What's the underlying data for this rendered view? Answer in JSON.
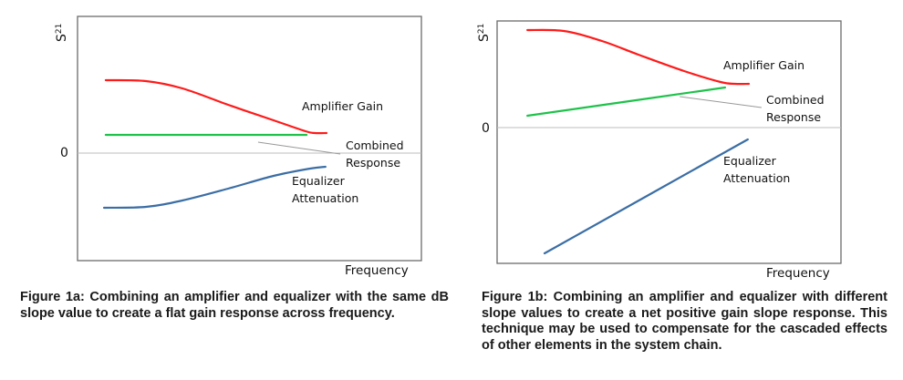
{
  "chart_data": [
    {
      "type": "line",
      "title": "",
      "xlabel": "Frequency",
      "ylabel": "S21",
      "ylabel_main": "S",
      "ylabel_sub": "21",
      "y_tick_labels": [
        "0"
      ],
      "xlim": [
        0,
        10
      ],
      "ylim": [
        -4.72,
        6
      ],
      "series": [
        {
          "name": "Amplifier Gain",
          "color": "#ff1a1a",
          "points": [
            [
              0.82,
              3.2
            ],
            [
              1.99,
              3.16
            ],
            [
              3.05,
              2.84
            ],
            [
              4.38,
              2.12
            ],
            [
              5.7,
              1.44
            ],
            [
              6.63,
              0.96
            ],
            [
              6.9,
              0.88
            ],
            [
              7.24,
              0.88
            ]
          ]
        },
        {
          "name": "Combined Response",
          "color": "#1ec24a",
          "points": [
            [
              0.82,
              0.8
            ],
            [
              6.66,
              0.8
            ]
          ]
        },
        {
          "name": "Equalizer Attenuation",
          "color": "#3b6ea5",
          "points": [
            [
              0.77,
              -2.4
            ],
            [
              1.99,
              -2.36
            ],
            [
              3.05,
              -2.08
            ],
            [
              4.38,
              -1.56
            ],
            [
              5.7,
              -1.0
            ],
            [
              6.76,
              -0.68
            ],
            [
              7.21,
              -0.6
            ]
          ]
        }
      ],
      "leader": [
        [
          5.25,
          0.48
        ],
        [
          7.64,
          -0.04
        ]
      ],
      "annotations": {
        "amp": "Amplifier Gain",
        "comb1": "Combined",
        "comb2": "Response",
        "eq1": "Equalizer",
        "eq2": "Attenuation"
      },
      "caption": "Figure 1a: Combining an amplifier and equalizer with the same dB slope value to create a flat gain response across frequency."
    },
    {
      "type": "line",
      "title": "",
      "xlabel": "Frequency",
      "ylabel": "S21",
      "ylabel_main": "S",
      "ylabel_sub": "21",
      "y_tick_labels": [
        "0"
      ],
      "xlim": [
        0,
        10
      ],
      "ylim": [
        -5.96,
        4.68
      ],
      "series": [
        {
          "name": "Amplifier Gain",
          "color": "#ff1a1a",
          "points": [
            [
              0.88,
              4.28
            ],
            [
              1.94,
              4.24
            ],
            [
              3.05,
              3.8
            ],
            [
              4.11,
              3.2
            ],
            [
              5.44,
              2.48
            ],
            [
              6.5,
              2.0
            ],
            [
              6.92,
              1.92
            ],
            [
              7.32,
              1.92
            ]
          ]
        },
        {
          "name": "Combined Response",
          "color": "#1ec24a",
          "points": [
            [
              0.88,
              0.52
            ],
            [
              6.63,
              1.76
            ]
          ]
        },
        {
          "name": "Equalizer Attenuation",
          "color": "#3b6ea5",
          "points": [
            [
              1.38,
              -5.52
            ],
            [
              7.29,
              -0.52
            ]
          ]
        }
      ],
      "leader": [
        [
          5.31,
          1.36
        ],
        [
          7.69,
          0.88
        ]
      ],
      "annotations": {
        "amp": "Amplifier Gain",
        "comb1": "Combined",
        "comb2": "Response",
        "eq1": "Equalizer",
        "eq2": "Attenuation"
      },
      "caption": "Figure 1b: Combining an amplifier and equalizer with different slope values to create a net positive gain slope response. This technique may be used to compensate for the cascaded effects of other elements in the system chain."
    }
  ]
}
